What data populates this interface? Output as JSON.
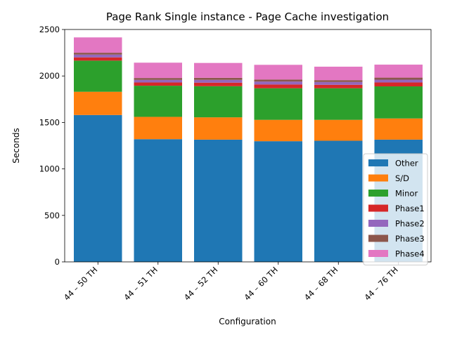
{
  "chart_data": {
    "type": "bar",
    "stacked": true,
    "title": "Page Rank Single instance - Page Cache investigation",
    "xlabel": "Configuration",
    "ylabel": "Seconds",
    "ylim": [
      0,
      2500
    ],
    "yticks": [
      0,
      500,
      1000,
      1500,
      2000,
      2500
    ],
    "categories": [
      "44 – 50 TH",
      "44 – 51 TH",
      "44 – 52 TH",
      "44 – 60 TH",
      "44 – 68 TH",
      "44 – 76 TH"
    ],
    "legend_position": "lower-right",
    "series": [
      {
        "name": "Other",
        "color": "#1f77b4",
        "values": [
          1580,
          1320,
          1315,
          1298,
          1303,
          1315
        ]
      },
      {
        "name": "S/D",
        "color": "#ff7f0e",
        "values": [
          250,
          240,
          240,
          230,
          225,
          228
        ]
      },
      {
        "name": "Minor",
        "color": "#2ca02c",
        "values": [
          335,
          335,
          335,
          340,
          340,
          345
        ]
      },
      {
        "name": "Phase1",
        "color": "#d62728",
        "values": [
          35,
          35,
          38,
          40,
          37,
          42
        ]
      },
      {
        "name": "Phase2",
        "color": "#9467bd",
        "values": [
          30,
          28,
          30,
          32,
          30,
          30
        ]
      },
      {
        "name": "Phase3",
        "color": "#8c564b",
        "values": [
          20,
          20,
          22,
          22,
          20,
          22
        ]
      },
      {
        "name": "Phase4",
        "color": "#e377c2",
        "values": [
          165,
          165,
          160,
          158,
          145,
          140
        ]
      }
    ]
  }
}
